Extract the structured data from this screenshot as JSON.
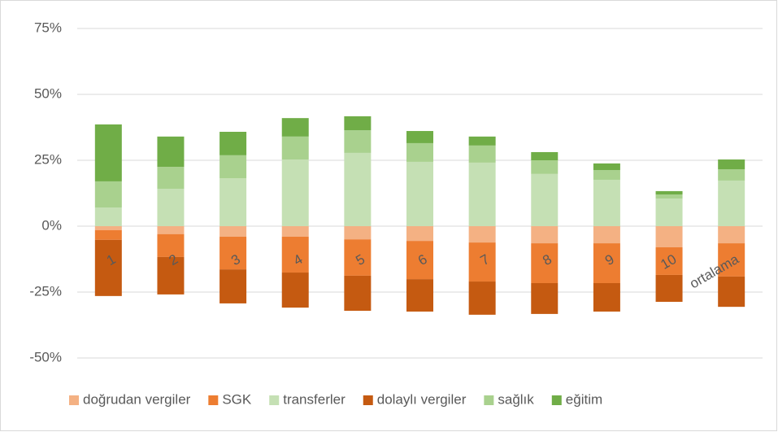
{
  "chart_data": {
    "type": "stacked-bar",
    "categories": [
      "1",
      "2",
      "3",
      "4",
      "5",
      "6",
      "7",
      "8",
      "9",
      "10",
      "ortalama"
    ],
    "series": [
      {
        "name": "doğrudan vergiler",
        "color": "#f4b183",
        "values": [
          -1.5,
          -3,
          -4,
          -4,
          -5,
          -5.6,
          -6.2,
          -6.5,
          -6.5,
          -8,
          -6.5
        ]
      },
      {
        "name": "SGK",
        "color": "#ed7d31",
        "values": [
          -3.7,
          -8.7,
          -12.4,
          -13.6,
          -13.8,
          -14.5,
          -14.8,
          -15.1,
          -15.1,
          -10.5,
          -12.6
        ]
      },
      {
        "name": "transferler",
        "color": "#c5e0b4",
        "values": [
          7.1,
          14.2,
          18.2,
          25.3,
          27.8,
          24.4,
          24.1,
          19.8,
          17.6,
          10.5,
          17.3
        ]
      },
      {
        "name": "dolaylı vergiler",
        "color": "#c55a11",
        "values": [
          -21.3,
          -14.2,
          -12.9,
          -13.3,
          -13.3,
          -12.3,
          -12.6,
          -11.7,
          -10.8,
          -10.2,
          -11.5
        ]
      },
      {
        "name": "sağlık",
        "color": "#a9d18e",
        "values": [
          9.9,
          8.3,
          8.7,
          8.7,
          8.6,
          7.1,
          6.5,
          5.2,
          3.7,
          1.5,
          4.3
        ]
      },
      {
        "name": "eğitim",
        "color": "#70ad47",
        "values": [
          21.6,
          11.5,
          8.9,
          7,
          5.3,
          4.6,
          3.4,
          3.1,
          2.5,
          1.3,
          3.7
        ]
      }
    ],
    "ylim": [
      -50,
      75
    ],
    "yticks": [
      {
        "value": -50,
        "label": "-50%"
      },
      {
        "value": -25,
        "label": "-25%"
      },
      {
        "value": 0,
        "label": "0%"
      },
      {
        "value": 25,
        "label": "25%"
      },
      {
        "value": 50,
        "label": "50%"
      },
      {
        "value": 75,
        "label": "75%"
      }
    ],
    "grid": true,
    "legend": "bottom"
  }
}
